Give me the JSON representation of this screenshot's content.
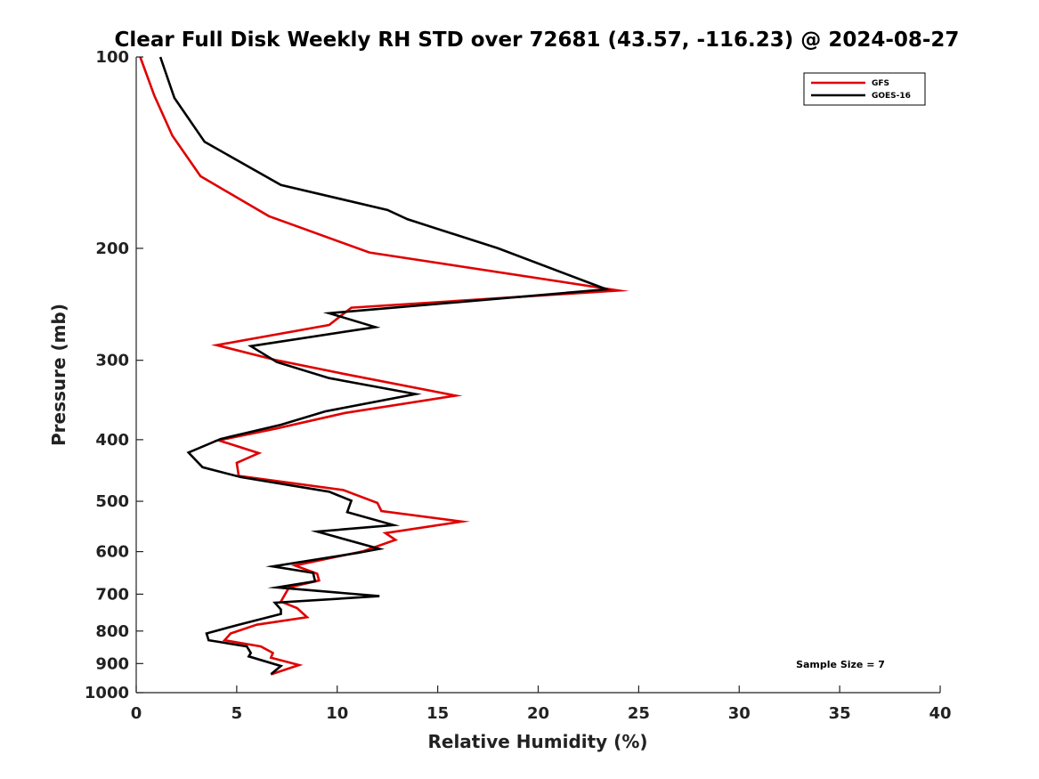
{
  "chart_data": {
    "type": "line",
    "title": "Clear Full Disk Weekly RH STD over 72681 (43.57, -116.23) @ 2024-08-27",
    "xlabel": "Relative Humidity (%)",
    "ylabel": "Pressure (mb)",
    "xlim": [
      0,
      40
    ],
    "ylim": [
      1000,
      100
    ],
    "y_scale": "log",
    "x_ticks": [
      0,
      5,
      10,
      15,
      20,
      25,
      30,
      35,
      40
    ],
    "y_ticks": [
      100,
      200,
      300,
      400,
      500,
      600,
      700,
      800,
      900,
      1000
    ],
    "grid": false,
    "legend_position": "top-right",
    "annotation": "Sample Size = 7",
    "series": [
      {
        "name": "GFS",
        "color": "#e00000",
        "points": [
          [
            0.2,
            100
          ],
          [
            0.9,
            115
          ],
          [
            1.8,
            133
          ],
          [
            3.2,
            154
          ],
          [
            6.6,
            178
          ],
          [
            11.6,
            203
          ],
          [
            24.0,
            233
          ],
          [
            10.7,
            248
          ],
          [
            9.6,
            264
          ],
          [
            4.0,
            284
          ],
          [
            7.0,
            300
          ],
          [
            10.3,
            315
          ],
          [
            15.9,
            341
          ],
          [
            10.4,
            363
          ],
          [
            7.0,
            384
          ],
          [
            4.1,
            401
          ],
          [
            6.1,
            420
          ],
          [
            5.0,
            435
          ],
          [
            5.1,
            456
          ],
          [
            10.3,
            480
          ],
          [
            12.0,
            503
          ],
          [
            12.2,
            518
          ],
          [
            16.2,
            538
          ],
          [
            12.4,
            561
          ],
          [
            12.9,
            575
          ],
          [
            11.3,
            599
          ],
          [
            7.9,
            631
          ],
          [
            9.0,
            650
          ],
          [
            9.1,
            666
          ],
          [
            7.6,
            683
          ],
          [
            7.2,
            719
          ],
          [
            8.0,
            736
          ],
          [
            8.5,
            761
          ],
          [
            6.0,
            782
          ],
          [
            4.7,
            807
          ],
          [
            4.4,
            827
          ],
          [
            6.2,
            846
          ],
          [
            6.8,
            866
          ],
          [
            6.7,
            881
          ],
          [
            8.1,
            905
          ],
          [
            6.7,
            936
          ]
        ]
      },
      {
        "name": "GOES-16",
        "color": "#000000",
        "points": [
          [
            1.2,
            100
          ],
          [
            1.9,
            116
          ],
          [
            3.4,
            136
          ],
          [
            7.2,
            159
          ],
          [
            12.5,
            174
          ],
          [
            13.5,
            180
          ],
          [
            18.0,
            200
          ],
          [
            23.4,
            232
          ],
          [
            9.6,
            253
          ],
          [
            11.9,
            266
          ],
          [
            5.7,
            285
          ],
          [
            7.0,
            302
          ],
          [
            9.6,
            320
          ],
          [
            13.9,
            339
          ],
          [
            9.4,
            361
          ],
          [
            7.2,
            379
          ],
          [
            4.2,
            399
          ],
          [
            2.6,
            419
          ],
          [
            3.3,
            442
          ],
          [
            5.2,
            458
          ],
          [
            9.6,
            483
          ],
          [
            10.7,
            499
          ],
          [
            10.5,
            520
          ],
          [
            12.8,
            545
          ],
          [
            9.0,
            558
          ],
          [
            12.1,
            594
          ],
          [
            11.0,
            603
          ],
          [
            6.8,
            633
          ],
          [
            8.8,
            648
          ],
          [
            8.9,
            668
          ],
          [
            7.0,
            683
          ],
          [
            12.1,
            705
          ],
          [
            6.9,
            722
          ],
          [
            7.2,
            740
          ],
          [
            7.2,
            752
          ],
          [
            5.1,
            782
          ],
          [
            3.5,
            807
          ],
          [
            3.6,
            827
          ],
          [
            5.5,
            846
          ],
          [
            5.7,
            866
          ],
          [
            5.6,
            877
          ],
          [
            7.2,
            908
          ],
          [
            6.7,
            935
          ]
        ]
      }
    ]
  }
}
